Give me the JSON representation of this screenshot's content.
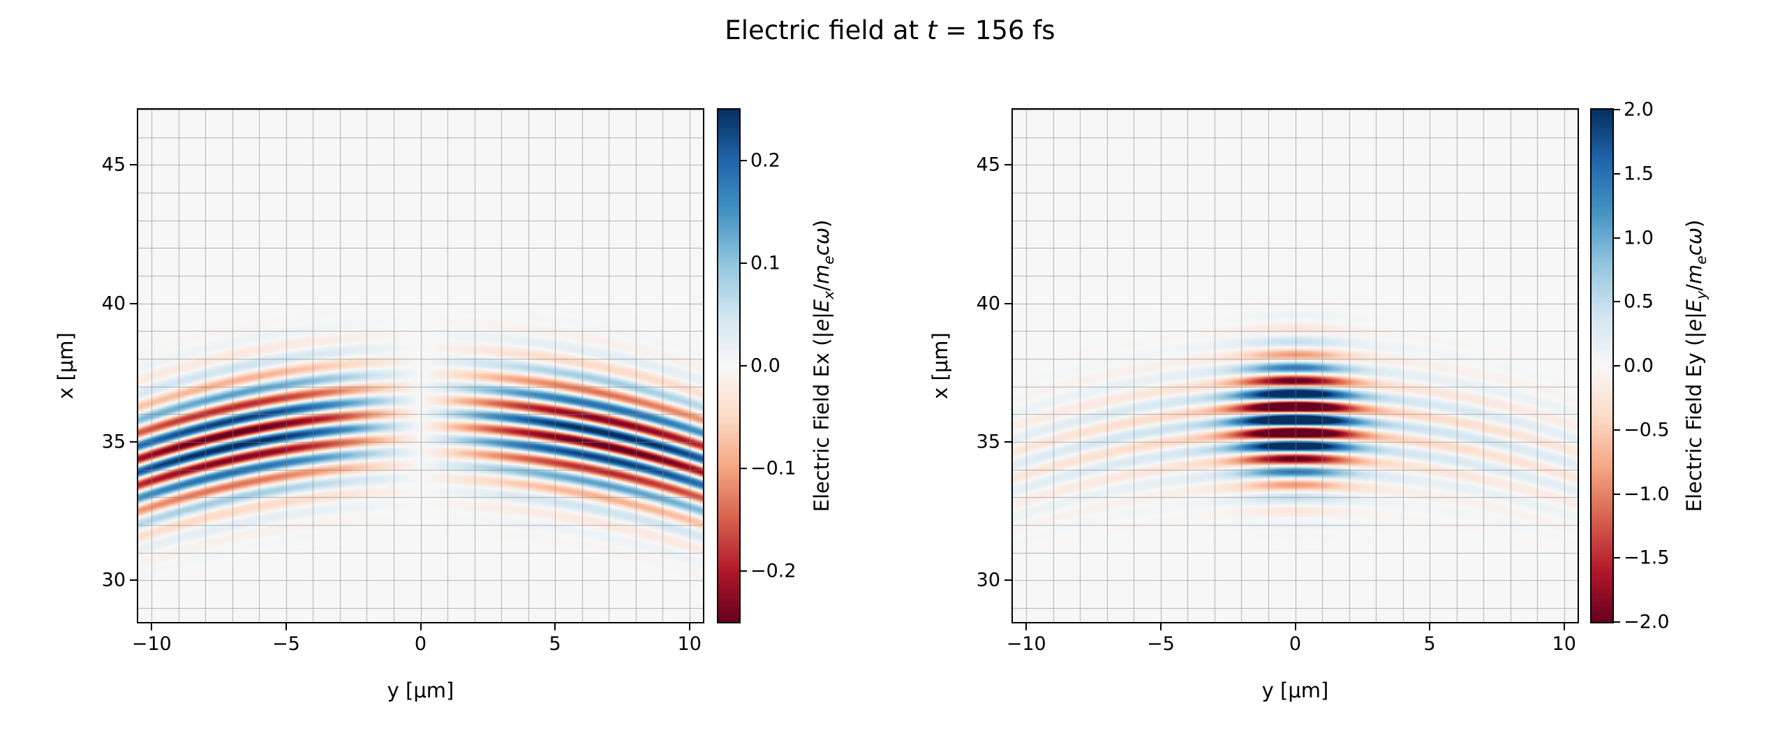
{
  "figure": {
    "title_text": "Electric field at t = 156 fs",
    "title_segments": [
      {
        "text": "Electric field at "
      },
      {
        "text": "t",
        "italic": true
      },
      {
        "text": " = 156 fs"
      }
    ],
    "background": "#ffffff",
    "grid_color": "rgba(130,130,130,0.6)",
    "colormap_name": "RdBu"
  },
  "colormap_stops": [
    [
      103,
      0,
      31
    ],
    [
      178,
      24,
      43
    ],
    [
      214,
      96,
      77
    ],
    [
      244,
      165,
      130
    ],
    [
      253,
      219,
      199
    ],
    [
      247,
      247,
      247
    ],
    [
      209,
      229,
      240
    ],
    [
      146,
      197,
      222
    ],
    [
      67,
      147,
      195
    ],
    [
      33,
      102,
      172
    ],
    [
      5,
      48,
      97
    ]
  ],
  "chart_data": [
    {
      "type": "heatmap",
      "field_name": "Ex",
      "xlabel": "y [μm]",
      "ylabel": "x [μm]",
      "xlim": [
        -10.5,
        10.5
      ],
      "ylim": [
        28.5,
        47.0
      ],
      "grid_step": 1,
      "xticks": [
        {
          "v": -10,
          "label": "−10"
        },
        {
          "v": -5,
          "label": "−5"
        },
        {
          "v": 0,
          "label": "0"
        },
        {
          "v": 5,
          "label": "5"
        },
        {
          "v": 10,
          "label": "10"
        }
      ],
      "yticks": [
        {
          "v": 30,
          "label": "30"
        },
        {
          "v": 35,
          "label": "35"
        },
        {
          "v": 40,
          "label": "40"
        },
        {
          "v": 45,
          "label": "45"
        }
      ],
      "colorbar": {
        "label_text": "Electric Field Ex (|e|Ex/mecω)",
        "label_segments": [
          {
            "text": "Electric Field Ex (|"
          },
          {
            "text": "e",
            "italic": true
          },
          {
            "text": "|"
          },
          {
            "text": "E",
            "italic": true
          },
          {
            "text": "x",
            "sub": true,
            "italic": true
          },
          {
            "text": "/"
          },
          {
            "text": "m",
            "italic": true
          },
          {
            "text": "e",
            "sub": true,
            "italic": true
          },
          {
            "text": "c",
            "italic": true
          },
          {
            "text": "ω",
            "italic": true
          },
          {
            "text": ")"
          }
        ],
        "vmin": -0.25,
        "vmax": 0.25,
        "ticks": [
          {
            "v": 0.2,
            "label": "0.2"
          },
          {
            "v": 0.1,
            "label": "0.1"
          },
          {
            "v": 0.0,
            "label": "0.0"
          },
          {
            "v": -0.1,
            "label": "−0.1"
          },
          {
            "v": -0.2,
            "label": "−0.2"
          }
        ]
      },
      "model": {
        "description": "Longitudinal laser-pulse field: antisymmetric lobes about y=0 (vanishes on axis, peaks near |y|≈7 μm), striped oscillation along x around x≈35.8 μm with downward-curved wavefronts",
        "amplitude": 0.27,
        "x_center": 35.8,
        "x_sigma": 2.0,
        "wavelength": 0.95,
        "curvature": 0.015,
        "phase_shift": -1.5707963,
        "y_profile": "lobes",
        "y_scale": 7.0
      }
    },
    {
      "type": "heatmap",
      "field_name": "Ey",
      "xlabel": "y [μm]",
      "ylabel": "x [μm]",
      "xlim": [
        -10.5,
        10.5
      ],
      "ylim": [
        28.5,
        47.0
      ],
      "grid_step": 1,
      "xticks": [
        {
          "v": -10,
          "label": "−10"
        },
        {
          "v": -5,
          "label": "−5"
        },
        {
          "v": 0,
          "label": "0"
        },
        {
          "v": 5,
          "label": "5"
        },
        {
          "v": 10,
          "label": "10"
        }
      ],
      "yticks": [
        {
          "v": 30,
          "label": "30"
        },
        {
          "v": 35,
          "label": "35"
        },
        {
          "v": 40,
          "label": "40"
        },
        {
          "v": 45,
          "label": "45"
        }
      ],
      "colorbar": {
        "label_text": "Electric Field Ey (|e|Ey/mecω)",
        "label_segments": [
          {
            "text": "Electric Field Ey (|"
          },
          {
            "text": "e",
            "italic": true
          },
          {
            "text": "|"
          },
          {
            "text": "E",
            "italic": true
          },
          {
            "text": "y",
            "sub": true,
            "italic": true
          },
          {
            "text": "/"
          },
          {
            "text": "m",
            "italic": true
          },
          {
            "text": "e",
            "sub": true,
            "italic": true
          },
          {
            "text": "c",
            "italic": true
          },
          {
            "text": "ω",
            "italic": true
          },
          {
            "text": ")"
          }
        ],
        "vmin": -2.0,
        "vmax": 2.0,
        "ticks": [
          {
            "v": 2.0,
            "label": "2.0"
          },
          {
            "v": 1.5,
            "label": "1.5"
          },
          {
            "v": 1.0,
            "label": "1.0"
          },
          {
            "v": 0.5,
            "label": "0.5"
          },
          {
            "v": 0.0,
            "label": "0.0"
          },
          {
            "v": -0.5,
            "label": "−0.5"
          },
          {
            "v": -1.0,
            "label": "−1.0"
          },
          {
            "v": -1.5,
            "label": "−1.5"
          },
          {
            "v": -2.0,
            "label": "−2.0"
          }
        ]
      },
      "model": {
        "description": "Transverse laser-pulse field: saturated Gaussian core at y=0 (|y|<2.5 μm) plus weak wide pedestal stripes to |y|≈10 μm, oscillation along x around x≈35.8 μm with downward-curved wavefronts",
        "amplitude": 3.0,
        "x_center": 35.8,
        "x_sigma": 2.0,
        "wavelength": 0.95,
        "curvature": 0.015,
        "phase_shift": 0,
        "y_profile": "gauss_pedestal",
        "y_core": 2.0,
        "pedestal": 0.16,
        "y_wide": 12.0
      }
    }
  ]
}
